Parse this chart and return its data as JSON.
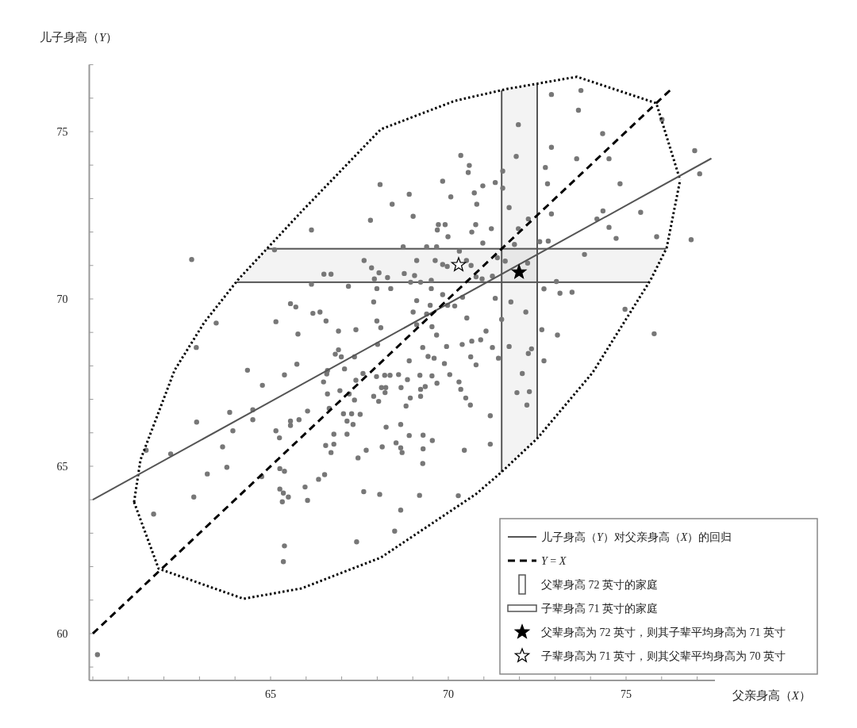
{
  "chart_data": {
    "type": "scatter",
    "xlabel": "父亲身高（*X*）",
    "ylabel": "儿子身高（*Y*）",
    "xlim": [
      59.9,
      77.5
    ],
    "ylim": [
      58.6,
      77
    ],
    "xticks": [
      {
        "value": 60,
        "label": null
      },
      {
        "value": 61,
        "label": null
      },
      {
        "value": 62,
        "label": null
      },
      {
        "value": 63,
        "label": null
      },
      {
        "value": 64,
        "label": null
      },
      65,
      {
        "value": 66,
        "label": null
      },
      {
        "value": 67,
        "label": null
      },
      {
        "value": 68,
        "label": null
      },
      {
        "value": 69,
        "label": null
      },
      70,
      {
        "value": 71,
        "label": null
      },
      {
        "value": 72,
        "label": null
      },
      {
        "value": 73,
        "label": null
      },
      {
        "value": 74,
        "label": null
      },
      75,
      {
        "value": 76,
        "label": null
      },
      {
        "value": 77,
        "label": null
      }
    ],
    "yticks": [
      {
        "value": 59,
        "label": null
      },
      60,
      {
        "value": 61,
        "label": null
      },
      {
        "value": 62,
        "label": null
      },
      {
        "value": 63,
        "label": null
      },
      {
        "value": 64,
        "label": null
      },
      65,
      {
        "value": 66,
        "label": null
      },
      {
        "value": 67,
        "label": null
      },
      {
        "value": 68,
        "label": null
      },
      {
        "value": 69,
        "label": null
      },
      70,
      {
        "value": 71,
        "label": null
      },
      {
        "value": 72,
        "label": null
      },
      {
        "value": 73,
        "label": null
      },
      {
        "value": 74,
        "label": null
      },
      75,
      {
        "value": 76,
        "label": null
      },
      {
        "value": 77,
        "label": null
      }
    ],
    "legend": "bottom right",
    "bands": [
      {
        "axis": "x",
        "from": 71.5,
        "to": 72.5,
        "label": "父辈身高 72 英寸的家庭",
        "color": "#555555"
      },
      {
        "axis": "y",
        "from": 70.5,
        "to": 71.5,
        "label": "子辈身高 71 英寸的家庭",
        "color": "#555555"
      }
    ],
    "series": [
      {
        "type": "line",
        "line_style": "dotted",
        "color": "#000000",
        "x": [
          61.16,
          61.34,
          62.3,
          63.13,
          64.08,
          65.87,
          68.1,
          70.18,
          71.67,
          73.62,
          75.85,
          76.52
        ],
        "values": [
          63.93,
          65.19,
          67.87,
          69.29,
          70.57,
          72.61,
          75.07,
          75.92,
          76.28,
          76.64,
          75.85,
          73.55
        ]
      },
      {
        "type": "line",
        "line_style": "dotted",
        "color": "#000000",
        "x": [
          61.16,
          61.85,
          64.24,
          65.87,
          68.1,
          70.78,
          71.5,
          72.5,
          74.06,
          75.69,
          76.14,
          76.52
        ],
        "values": [
          63.93,
          61.94,
          61.04,
          61.35,
          62.27,
          64.17,
          64.83,
          65.83,
          67.8,
          70.57,
          71.52,
          73.55
        ]
      },
      {
        "type": "scatter",
        "marker": "circle",
        "color": "#777777",
        "x": [
          62.78,
          65.11,
          65.56,
          65.71,
          63.47,
          65.15,
          65.77,
          62.91,
          65.74,
          64.35,
          64.77,
          65.39,
          62.92,
          63.85,
          64.5,
          64.5,
          63.94,
          65.15,
          65.25,
          65.56,
          65.56,
          65.8,
          61.5,
          62.19,
          63.65,
          63.77,
          63.22,
          64.75,
          65.26,
          65.39,
          62.84,
          65.26,
          65.36,
          65.5,
          65.33,
          61.71,
          65.39,
          65.36,
          60.13,
          66.58,
          66.49,
          66.6,
          66.95,
          67.21,
          67.4,
          67.6,
          66.04,
          66.65,
          67.36,
          67.05,
          67.28,
          67.52,
          67.15,
          67.32,
          67.98,
          68.21,
          68.36,
          68.6,
          68.85,
          69.2,
          69.54,
          69.68,
          70.04,
          70.3,
          70.35,
          70.49,
          70.62,
          71.18,
          71.18,
          68.12,
          68.24,
          68.22,
          67.9,
          68.04,
          68.67,
          68.93,
          68.81,
          69.22,
          69.35,
          69.22,
          66.78,
          66.55,
          66.78,
          66.7,
          67.15,
          67.69,
          67.46,
          68.25,
          68.14,
          68.53,
          68.66,
          68.66,
          68.7,
          68.9,
          69.29,
          69.29,
          69.55,
          69.28,
          70.45,
          65.97,
          66.04,
          66.35,
          66.52,
          67.62,
          68.07,
          69.19,
          70.28,
          68.66,
          68.49,
          67.42,
          72.08,
          71.93,
          72.28,
          72.21,
          70.35,
          70.59,
          70.56,
          69.84,
          68.08,
          68.9,
          70.07,
          68.42,
          70.97,
          71.32,
          70.73,
          70.8,
          71.53,
          71.53,
          69.01,
          67.81,
          66.15,
          69.72,
          69.91,
          69.69,
          69.99,
          70.77,
          70.66,
          71.21,
          70.97,
          68.73,
          69.39,
          69.67,
          70.31,
          67.63,
          67.84,
          68.05,
          66.5,
          66.7,
          69.11,
          69.63,
          69.84,
          69.97,
          70.64,
          70.51,
          71.38,
          71.6,
          68.76,
          69.05,
          68.29,
          67.92,
          66.15,
          67.19,
          67.99,
          68.38,
          68.94,
          69.22,
          69.52,
          70.78,
          70.95,
          71.24,
          69.52,
          69.84,
          70.4,
          71.32,
          67.9,
          69.11,
          69.49,
          69.98,
          70.18,
          66.19,
          66.39,
          66.56,
          67.99,
          68.1,
          69.01,
          69.39,
          69.54,
          70.52,
          66.91,
          67.4,
          69.11,
          69.67,
          71.06,
          71.5,
          68.01,
          69.28,
          69.95,
          70.39,
          70.66,
          70.91,
          71.24,
          66.91,
          66.82,
          66.99,
          67.36,
          69.43,
          69.6,
          68.9,
          69.89,
          70.63,
          70.78,
          71.41,
          66.6,
          67.08,
          72.9,
          73.73,
          73.66,
          71.97,
          74.34,
          72.9,
          71.91,
          73.61,
          74.52,
          72.73,
          76.01,
          76.93,
          77.07,
          72.79,
          74.83,
          71.71,
          72.25,
          72.9,
          71.97,
          74.35,
          74.18,
          74.52,
          75.41,
          74.72,
          75.86,
          76.83,
          71.86,
          72.57,
          72.81,
          73.83,
          72.23,
          73.04,
          72.69,
          73.14,
          73.48,
          71.76,
          72.18,
          74.97,
          72.63,
          73.07,
          75.79,
          71.71,
          72.34,
          72.25,
          72.69
        ],
        "values": [
          71.18,
          71.47,
          69.86,
          69.76,
          69.28,
          69.32,
          68.95,
          68.55,
          68.05,
          67.87,
          67.42,
          67.73,
          66.32,
          66.61,
          66.69,
          66.39,
          66.06,
          66.06,
          65.85,
          66.35,
          66.22,
          66.39,
          65.48,
          65.37,
          65.58,
          64.97,
          64.77,
          64.69,
          64.93,
          64.85,
          64.08,
          64.32,
          64.2,
          64.08,
          63.94,
          63.57,
          62.62,
          62.15,
          59.37,
          67.76,
          67.52,
          67.16,
          67.26,
          67.16,
          67.57,
          67.77,
          66.65,
          66.73,
          66.98,
          66.57,
          66.57,
          66.55,
          66.35,
          66.25,
          67.68,
          67.72,
          67.72,
          67.74,
          67.59,
          67.72,
          67.7,
          67.48,
          67.74,
          67.52,
          67.3,
          67.04,
          66.83,
          66.51,
          65.66,
          67.35,
          67.35,
          67.2,
          67.09,
          66.94,
          67.35,
          67.04,
          66.8,
          67.3,
          67.38,
          67.09,
          65.96,
          65.62,
          65.66,
          65.41,
          65.96,
          65.48,
          65.25,
          66.17,
          65.58,
          65.7,
          66.25,
          65.55,
          65.41,
          65.92,
          65.93,
          65.52,
          65.77,
          65.08,
          65.48,
          64.38,
          63.98,
          64.61,
          64.75,
          64.24,
          64.16,
          64.13,
          64.12,
          63.69,
          63.06,
          62.74,
          67.77,
          67.2,
          67.23,
          66.83,
          74.29,
          73.99,
          73.78,
          73.52,
          73.42,
          73.13,
          73.05,
          72.83,
          73.38,
          73.48,
          73.17,
          72.83,
          73.82,
          73.31,
          72.47,
          72.35,
          72.06,
          72.22,
          72.22,
          72.06,
          71.86,
          72.22,
          72.0,
          72.1,
          71.67,
          71.56,
          71.56,
          71.56,
          71.43,
          71.15,
          70.93,
          70.78,
          70.74,
          70.74,
          71.15,
          71.15,
          71.03,
          70.97,
          71.0,
          71.15,
          71.23,
          71.13,
          70.76,
          70.7,
          70.64,
          70.6,
          70.44,
          70.38,
          70.31,
          70.31,
          70.5,
          70.5,
          70.56,
          70.66,
          70.6,
          70.68,
          70.31,
          70.13,
          70.05,
          70.02,
          69.91,
          69.95,
          69.81,
          69.81,
          69.79,
          69.57,
          69.61,
          69.34,
          69.34,
          69.14,
          69.61,
          69.55,
          69.17,
          69.43,
          69.04,
          69.08,
          69.23,
          68.92,
          69.04,
          69.39,
          68.64,
          68.55,
          68.58,
          68.64,
          68.74,
          68.78,
          68.55,
          68.48,
          68.35,
          68.27,
          68.27,
          68.28,
          68.23,
          68.15,
          68.07,
          68.27,
          68.03,
          68.23,
          67.86,
          67.91,
          76.11,
          76.23,
          75.64,
          75.21,
          74.94,
          74.53,
          74.26,
          74.19,
          74.19,
          73.93,
          75.36,
          74.43,
          73.74,
          73.44,
          73.44,
          72.73,
          72.39,
          72.54,
          72.1,
          72.63,
          72.39,
          72.14,
          72.59,
          71.81,
          71.86,
          71.77,
          71.63,
          71.71,
          71.73,
          71.33,
          71.07,
          70.52,
          70.3,
          70.17,
          70.2,
          69.91,
          69.61,
          69.69,
          69.08,
          68.92,
          68.96,
          68.58,
          68.51,
          68.37,
          68.15
        ]
      },
      {
        "type": "line",
        "line_style": "solid",
        "color": "#555555",
        "name": "儿子身高（*Y*）对父亲身高（*X*）的回归",
        "x": [
          60,
          77.4
        ],
        "values": [
          64.0,
          74.2
        ]
      },
      {
        "type": "line",
        "line_style": "dashed",
        "color": "#000000",
        "name": "*Y* = *X*",
        "x": [
          60,
          76.3
        ],
        "values": [
          60,
          76.3
        ]
      },
      {
        "type": "scatter",
        "marker": "star",
        "color": "#000000",
        "name": "父辈身高为 72 英寸，则其子辈平均身高为 71 英寸",
        "x": [
          71.99
        ],
        "values": [
          70.8
        ]
      },
      {
        "type": "scatter",
        "marker": "star",
        "color": "#ffffff",
        "name": "子辈身高为 71 英寸，则其父辈平均身高为 70 英寸",
        "x": [
          70.29
        ],
        "values": [
          71.02
        ]
      }
    ]
  }
}
